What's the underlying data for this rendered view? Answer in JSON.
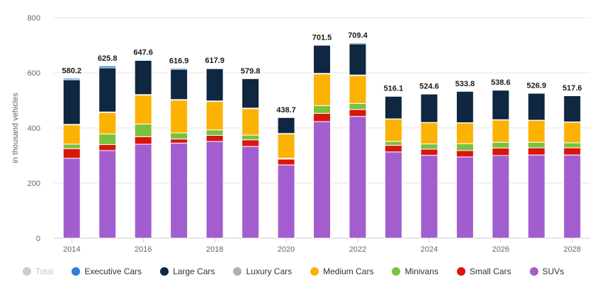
{
  "chart_data": {
    "type": "stacked-bar",
    "title": "",
    "xlabel": "",
    "ylabel": "in thousand vehicles",
    "ylim": [
      0,
      800
    ],
    "yticks": [
      0,
      200,
      400,
      600,
      800
    ],
    "xtick_labels": [
      "2014",
      "2016",
      "2018",
      "2020",
      "2022",
      "2024",
      "2026",
      "2028"
    ],
    "categories": [
      "2014",
      "2015",
      "2016",
      "2017",
      "2018",
      "2019",
      "2020",
      "2021",
      "2022",
      "2023",
      "2024",
      "2025",
      "2026",
      "2027",
      "2028"
    ],
    "totals": [
      580.2,
      625.8,
      647.6,
      616.9,
      617.9,
      579.8,
      438.7,
      701.5,
      709.4,
      516.1,
      524.6,
      533.8,
      538.6,
      526.9,
      517.6
    ],
    "total_labels": [
      "580.2",
      "625.8",
      "647.6",
      "616.9",
      "617.9",
      "579.8",
      "438.7",
      "701.5",
      "709.4",
      "516.1",
      "524.6",
      "533.8",
      "538.6",
      "526.9",
      "517.6"
    ],
    "series": [
      {
        "name": "SUVs",
        "color": "#a25ecf",
        "values": [
          290,
          318,
          341,
          345,
          351,
          333,
          266,
          423,
          442,
          313,
          301,
          295,
          300,
          302,
          302
        ]
      },
      {
        "name": "Small Cars",
        "color": "#d9150c",
        "values": [
          35,
          22,
          27,
          15,
          22,
          24,
          21,
          30,
          25,
          24,
          22,
          23,
          27,
          26,
          26
        ]
      },
      {
        "name": "Minivans",
        "color": "#7bc13e",
        "values": [
          16,
          38,
          46,
          22,
          20,
          17,
          3,
          28,
          22,
          14,
          19,
          25,
          21,
          20,
          18
        ]
      },
      {
        "name": "Medium Cars",
        "color": "#fbb202",
        "values": [
          70,
          78,
          105,
          119,
          103,
          96,
          88,
          115,
          101,
          81,
          77,
          75,
          81,
          79,
          75
        ]
      },
      {
        "name": "Luxury Cars",
        "color": "#b0b0b0",
        "values": [
          2,
          2,
          2,
          2,
          2,
          2,
          2,
          2,
          2,
          1,
          1,
          1,
          1,
          1,
          1
        ]
      },
      {
        "name": "Large Cars",
        "color": "#0f2740",
        "values": [
          162,
          160,
          124,
          110,
          117,
          107,
          58,
          102,
          113,
          82,
          103,
          114,
          107,
          98,
          95
        ]
      },
      {
        "name": "Executive Cars",
        "color": "#2f7ed8",
        "values": [
          5,
          7,
          3,
          4,
          3,
          1,
          1,
          2,
          4,
          1,
          1,
          1,
          1,
          1,
          1
        ]
      }
    ],
    "legend": {
      "position": "bottom-left",
      "items": [
        {
          "name": "Total",
          "color": "#cccccc",
          "hidden": true
        },
        {
          "name": "Executive Cars",
          "color": "#2f7ed8"
        },
        {
          "name": "Large Cars",
          "color": "#0f2740"
        },
        {
          "name": "Luxury Cars",
          "color": "#b0b0b0"
        },
        {
          "name": "Medium Cars",
          "color": "#fbb202"
        },
        {
          "name": "Minivans",
          "color": "#7bc13e"
        },
        {
          "name": "Small Cars",
          "color": "#d9150c"
        },
        {
          "name": "SUVs",
          "color": "#a25ecf"
        }
      ]
    },
    "grid": true
  }
}
